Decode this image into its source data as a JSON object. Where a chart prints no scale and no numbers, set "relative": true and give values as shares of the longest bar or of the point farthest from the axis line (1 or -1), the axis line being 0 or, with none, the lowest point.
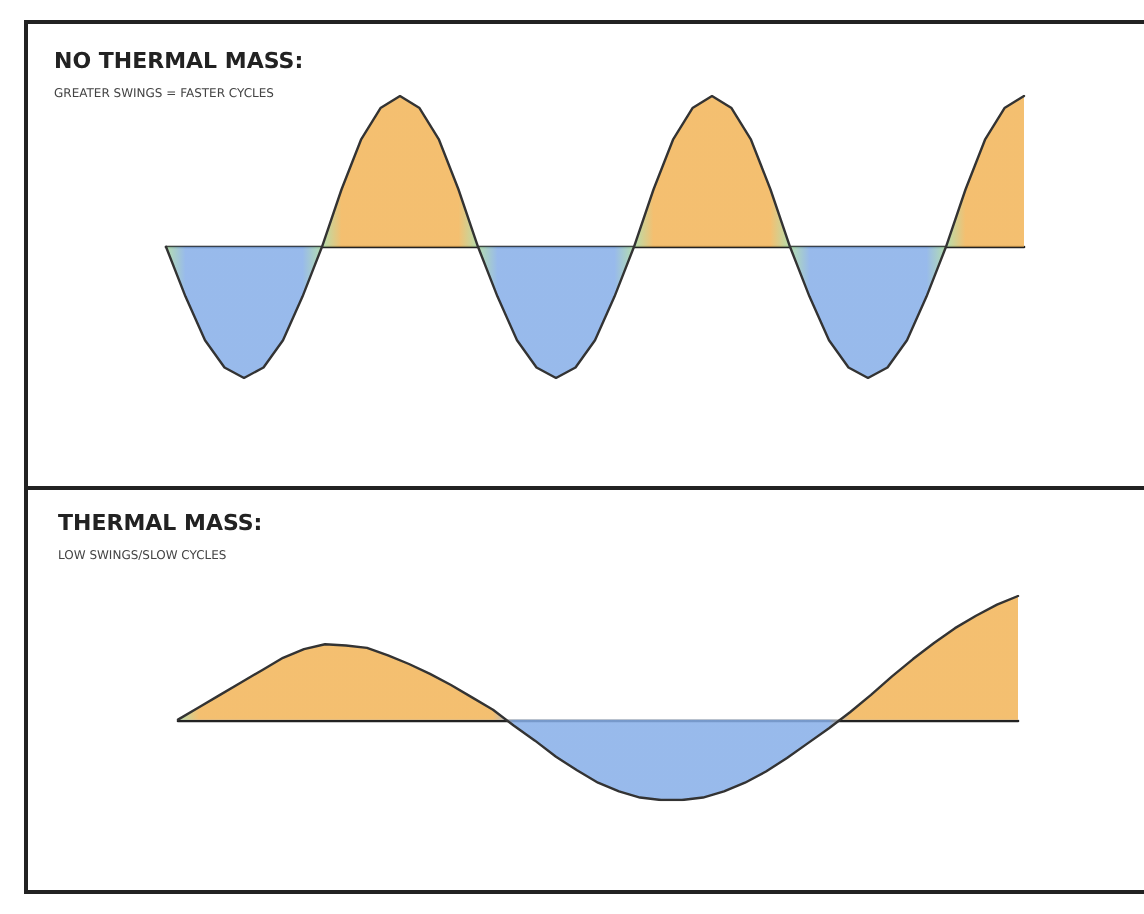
{
  "chart_data": [
    {
      "type": "area",
      "title": "NO THERMAL MASS:",
      "subtitle": "GREATER SWINGS = FASTER CYCLES",
      "relative": true,
      "color": "#333333",
      "categories": [
        null,
        null,
        null,
        null,
        null,
        null,
        null,
        null,
        null,
        null,
        null,
        null,
        null,
        null,
        null,
        null,
        null,
        null,
        null,
        null,
        null,
        null,
        null,
        null,
        null,
        null,
        null,
        null,
        null,
        null,
        null,
        null,
        null,
        null,
        null,
        null,
        null,
        null,
        null,
        null,
        null,
        null,
        null,
        null,
        null
      ],
      "values": [
        0,
        -0.33,
        -0.62,
        -0.8,
        -0.87,
        -0.8,
        -0.62,
        -0.33,
        0,
        0.38,
        0.71,
        0.92,
        1,
        0.92,
        0.71,
        0.38,
        0,
        -0.33,
        -0.62,
        -0.8,
        -0.87,
        -0.8,
        -0.62,
        -0.33,
        0,
        0.38,
        0.71,
        0.92,
        1,
        0.92,
        0.71,
        0.38,
        0,
        -0.33,
        -0.62,
        -0.8,
        -0.87,
        -0.8,
        -0.62,
        -0.33,
        0,
        0.38,
        0.71,
        0.92,
        1
      ],
      "colors": [
        "#a8d8a0",
        "#86aee8",
        "#86aee8",
        "#86aee8",
        "#86aee8",
        "#86aee8",
        "#86aee8",
        "#86aee8",
        "#a8d8a0",
        "#f2b457",
        "#f2b457",
        "#f2b457",
        "#f2b457",
        "#f2b457",
        "#f2b457",
        "#f2b457",
        "#a8d8a0",
        "#86aee8",
        "#86aee8",
        "#86aee8",
        "#86aee8",
        "#86aee8",
        "#86aee8",
        "#86aee8",
        "#a8d8a0",
        "#f2b457",
        "#f2b457",
        "#f2b457",
        "#f2b457",
        "#f2b457",
        "#f2b457",
        "#f2b457",
        "#a8d8a0",
        "#86aee8",
        "#86aee8",
        "#86aee8",
        "#86aee8",
        "#86aee8",
        "#86aee8",
        "#86aee8",
        "#a8d8a0",
        "#f2b457",
        "#f2b457",
        "#f2b457",
        "#f2b457"
      ]
    },
    {
      "type": "area",
      "title": "THERMAL MASS:",
      "subtitle": "LOW SWINGS/SLOW CYCLES",
      "relative": true,
      "color": "#333333",
      "categories": [
        null,
        null,
        null,
        null,
        null,
        null,
        null,
        null,
        null,
        null,
        null,
        null,
        null,
        null,
        null,
        null,
        null,
        null,
        null,
        null,
        null,
        null,
        null,
        null,
        null,
        null,
        null,
        null,
        null,
        null,
        null,
        null,
        null,
        null,
        null,
        null,
        null,
        null,
        null,
        null,
        null
      ],
      "values": [
        0,
        0.1,
        0.2,
        0.3,
        0.4,
        0.5,
        0.57,
        0.61,
        0.6,
        0.58,
        0.52,
        0.45,
        0.37,
        0.28,
        0.18,
        0.08,
        -0.05,
        -0.17,
        -0.3,
        -0.41,
        -0.51,
        -0.58,
        -0.63,
        -0.65,
        -0.65,
        -0.63,
        -0.58,
        -0.51,
        -0.42,
        -0.31,
        -0.19,
        -0.07,
        0.06,
        0.2,
        0.35,
        0.49,
        0.62,
        0.74,
        0.84,
        0.93,
        1
      ],
      "colors": [
        "#a8d8a0",
        "#f2b457",
        "#f2b457",
        "#f2b457",
        "#f2b457",
        "#f2b457",
        "#f2b457",
        "#f2b457",
        "#f2b457",
        "#f2b457",
        "#f2b457",
        "#f2b457",
        "#f2b457",
        "#f2b457",
        "#f2b457",
        "#f2b457",
        "#86aee8",
        "#86aee8",
        "#86aee8",
        "#86aee8",
        "#86aee8",
        "#86aee8",
        "#86aee8",
        "#86aee8",
        "#86aee8",
        "#86aee8",
        "#86aee8",
        "#86aee8",
        "#86aee8",
        "#86aee8",
        "#86aee8",
        "#86aee8",
        "#f2b457",
        "#f2b457",
        "#f2b457",
        "#f2b457",
        "#f2b457",
        "#f2b457",
        "#f2b457",
        "#f2b457",
        "#f2b457"
      ]
    }
  ]
}
